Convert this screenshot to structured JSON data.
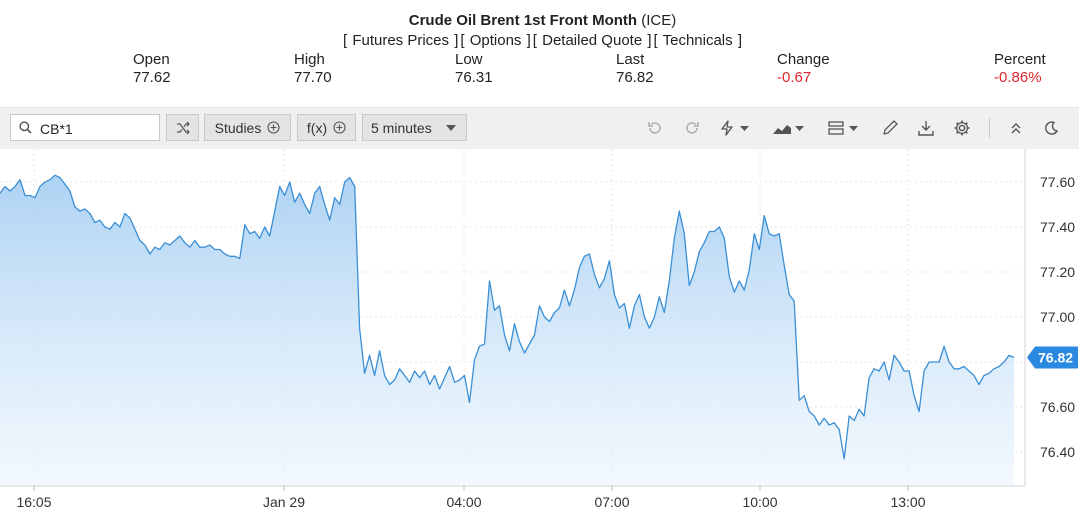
{
  "header": {
    "title_bold": "Crude Oil Brent 1st Front Month",
    "title_exchange": "(ICE)",
    "links": [
      "Futures Prices",
      "Options",
      "Detailed Quote",
      "Technicals"
    ]
  },
  "quote": {
    "open_label": "Open",
    "open": "77.62",
    "high_label": "High",
    "high": "77.70",
    "low_label": "Low",
    "low": "76.31",
    "last_label": "Last",
    "last": "76.82",
    "change_label": "Change",
    "change": "-0.67",
    "percent_label": "Percent",
    "percent": "-0.86%"
  },
  "toolbar": {
    "symbol_value": "CB*1",
    "studies_label": "Studies",
    "fx_label": "f(x)",
    "interval_label": "5 minutes"
  },
  "colors": {
    "line": "#3a8fd6",
    "negative": "#e0262c",
    "last_badge": "#2a8ae2"
  },
  "chart_data": {
    "type": "area",
    "x_ticks": [
      "16:05",
      "Jan 29",
      "04:00",
      "07:00",
      "10:00",
      "13:00"
    ],
    "y_ticks": [
      "77.60",
      "77.40",
      "77.20",
      "77.00",
      "76.80",
      "76.60",
      "76.40"
    ],
    "ylim": [
      76.24,
      77.7
    ],
    "last_value": "76.82",
    "grid": true,
    "series": [
      {
        "values": [
          77.55,
          77.58,
          77.56,
          77.58,
          77.61,
          77.54,
          77.54,
          77.53,
          77.58,
          77.6,
          77.61,
          77.63,
          77.62,
          77.59,
          77.56,
          77.49,
          77.47,
          77.48,
          77.46,
          77.42,
          77.43,
          77.4,
          77.39,
          77.42,
          77.4,
          77.46,
          77.44,
          77.39,
          77.34,
          77.32,
          77.28,
          77.31,
          77.3,
          77.33,
          77.32,
          77.34,
          77.36,
          77.33,
          77.31,
          77.34,
          77.31,
          77.31,
          77.32,
          77.3,
          77.3,
          77.28,
          77.27,
          77.27,
          77.26,
          77.41,
          77.37,
          77.38,
          77.35,
          77.4,
          77.36,
          77.47,
          77.58,
          77.54,
          77.6,
          77.51,
          77.55,
          77.5,
          77.46,
          77.55,
          77.58,
          77.5,
          77.43,
          77.53,
          77.5,
          77.6,
          77.62,
          77.58,
          76.95,
          76.75,
          76.83,
          76.74,
          76.85,
          76.74,
          76.7,
          76.72,
          76.77,
          76.74,
          76.71,
          76.76,
          76.73,
          76.76,
          76.7,
          76.74,
          76.68,
          76.73,
          76.78,
          76.71,
          76.72,
          76.74,
          76.62,
          76.81,
          76.87,
          76.88,
          77.16,
          77.03,
          77.05,
          76.92,
          76.85,
          76.97,
          76.89,
          76.84,
          76.88,
          76.92,
          77.05,
          77.0,
          76.98,
          77.02,
          77.04,
          77.12,
          77.05,
          77.12,
          77.22,
          77.27,
          77.28,
          77.19,
          77.13,
          77.17,
          77.25,
          77.1,
          77.04,
          77.06,
          76.95,
          77.05,
          77.1,
          77.0,
          76.95,
          77.0,
          77.09,
          77.02,
          77.16,
          77.35,
          77.47,
          77.37,
          77.14,
          77.2,
          77.29,
          77.33,
          77.38,
          77.38,
          77.4,
          77.35,
          77.18,
          77.11,
          77.16,
          77.12,
          77.21,
          77.37,
          77.3,
          77.45,
          77.37,
          77.36,
          77.37,
          77.23,
          77.1,
          77.07,
          76.63,
          76.65,
          76.58,
          76.56,
          76.52,
          76.55,
          76.52,
          76.53,
          76.5,
          76.37,
          76.56,
          76.54,
          76.59,
          76.56,
          76.73,
          76.77,
          76.76,
          76.8,
          76.72,
          76.83,
          76.8,
          76.76,
          76.76,
          76.65,
          76.58,
          76.76,
          76.8,
          76.8,
          76.8,
          76.87,
          76.8,
          76.77,
          76.77,
          76.78,
          76.76,
          76.74,
          76.7,
          76.74,
          76.75,
          76.77,
          76.78,
          76.8,
          76.83,
          76.82
        ]
      }
    ]
  }
}
